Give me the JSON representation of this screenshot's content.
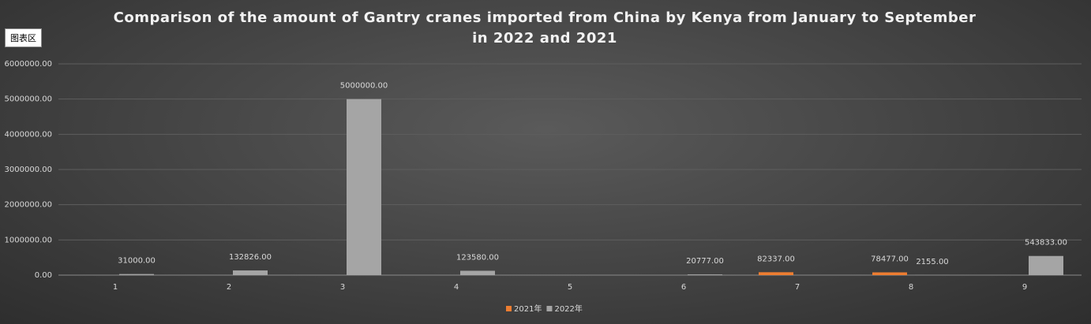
{
  "chart_data": {
    "type": "bar",
    "title": "Comparison of the amount of Gantry cranes imported from China by Kenya from January to September in 2022 and 2021",
    "tooltip": "图表区",
    "categories": [
      "1",
      "2",
      "3",
      "4",
      "5",
      "6",
      "7",
      "8",
      "9"
    ],
    "series": [
      {
        "name": "2021年",
        "color": "#ed7d31",
        "values": [
          null,
          null,
          null,
          null,
          null,
          null,
          82337,
          78477,
          null
        ],
        "value_labels": [
          null,
          null,
          null,
          null,
          null,
          null,
          "82337.00",
          "78477.00",
          null
        ]
      },
      {
        "name": "2022年",
        "color": "#a5a5a5",
        "values": [
          31000,
          132826,
          5000000,
          123580,
          null,
          20777,
          null,
          2155,
          543833
        ],
        "value_labels": [
          "31000.00",
          "132826.00",
          "5000000.00",
          "123580.00",
          null,
          "20777.00",
          null,
          "2155.00",
          "543833.00"
        ]
      }
    ],
    "ylim": [
      0,
      6000000
    ],
    "yticks": [
      {
        "value": 0,
        "label": "0.00"
      },
      {
        "value": 1000000,
        "label": "1000000.00"
      },
      {
        "value": 2000000,
        "label": "2000000.00"
      },
      {
        "value": 3000000,
        "label": "3000000.00"
      },
      {
        "value": 4000000,
        "label": "4000000.00"
      },
      {
        "value": 5000000,
        "label": "5000000.00"
      },
      {
        "value": 6000000,
        "label": "6000000.00"
      }
    ],
    "grid": true,
    "legend": "bottom"
  }
}
